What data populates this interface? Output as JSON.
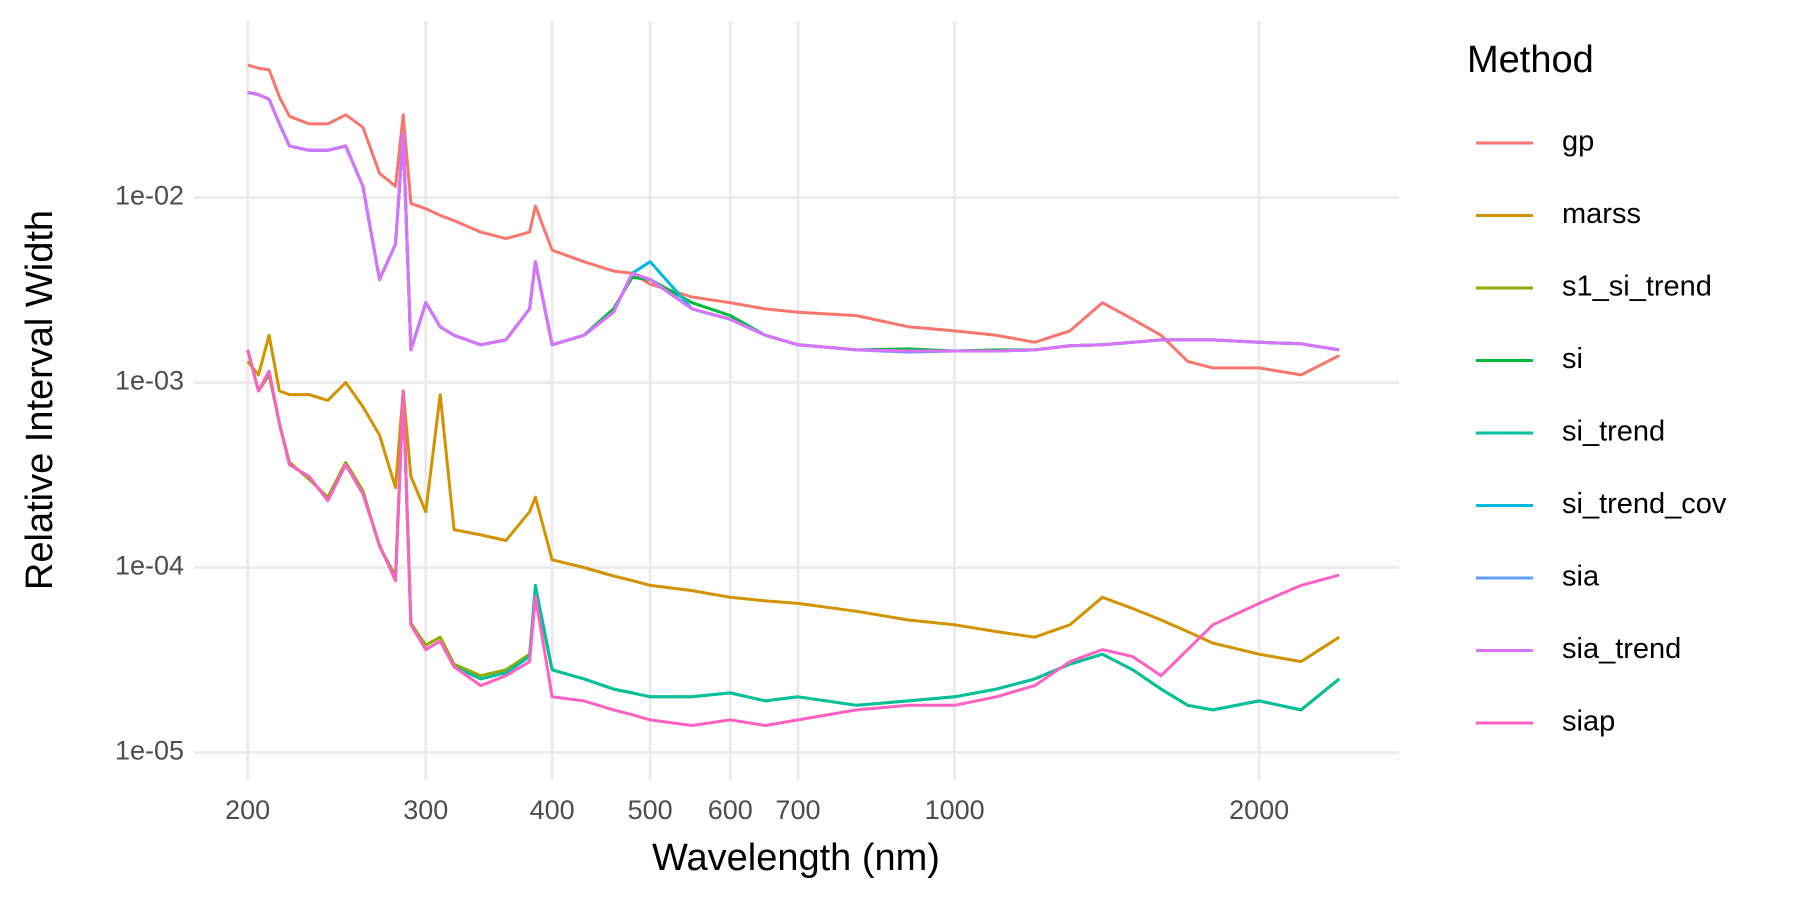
{
  "chart_data": {
    "type": "line",
    "xlabel": "Wavelength (nm)",
    "ylabel": "Relative Interval Width",
    "legend_title": "Method",
    "legend": "right",
    "grid": true,
    "xscale": "log",
    "yscale": "log",
    "xlim": [
      177,
      2750
    ],
    "ylim": [
      7.1e-06,
      0.09
    ],
    "xticks": [
      200,
      300,
      400,
      500,
      600,
      700,
      1000,
      2000
    ],
    "yticks": [
      {
        "value": 1e-05,
        "label": "1e-05"
      },
      {
        "value": 0.0001,
        "label": "1e-04"
      },
      {
        "value": 0.001,
        "label": "1e-03"
      },
      {
        "value": 0.01,
        "label": "1e-02"
      }
    ],
    "x": [
      200,
      205,
      210,
      215,
      220,
      230,
      240,
      250,
      260,
      270,
      280,
      285,
      290,
      300,
      310,
      320,
      340,
      360,
      380,
      385,
      400,
      430,
      460,
      480,
      500,
      550,
      600,
      650,
      700,
      800,
      900,
      1000,
      1100,
      1200,
      1300,
      1400,
      1500,
      1600,
      1700,
      1800,
      2000,
      2200,
      2400
    ],
    "series": [
      {
        "name": "gp",
        "color": "#F8766D",
        "values": [
          0.052,
          0.05,
          0.049,
          0.035,
          0.0275,
          0.025,
          0.025,
          0.028,
          0.024,
          0.0135,
          0.0115,
          0.028,
          0.0093,
          0.0087,
          0.008,
          0.0075,
          0.0065,
          0.006,
          0.0065,
          0.009,
          0.0052,
          0.0045,
          0.004,
          0.0039,
          0.0034,
          0.0029,
          0.0027,
          0.0025,
          0.0024,
          0.0023,
          0.002,
          0.0019,
          0.0018,
          0.00165,
          0.0019,
          0.0027,
          0.0022,
          0.0018,
          0.0013,
          0.0012,
          0.0012,
          0.0011,
          0.0014
        ]
      },
      {
        "name": "marss",
        "color": "#D39200",
        "values": [
          0.0013,
          0.0011,
          0.0018,
          0.0009,
          0.00086,
          0.00086,
          0.0008,
          0.001,
          0.00074,
          0.00052,
          0.00027,
          0.0009,
          0.00031,
          0.0002,
          0.00086,
          0.00016,
          0.00015,
          0.00014,
          0.0002,
          0.00024,
          0.00011,
          0.0001,
          9e-05,
          8.5e-05,
          8e-05,
          7.5e-05,
          6.9e-05,
          6.6e-05,
          6.4e-05,
          5.8e-05,
          5.2e-05,
          4.9e-05,
          4.5e-05,
          4.2e-05,
          4.9e-05,
          6.9e-05,
          6e-05,
          5.2e-05,
          4.5e-05,
          3.9e-05,
          3.4e-05,
          3.1e-05,
          4.2e-05
        ]
      },
      {
        "name": "s1_si_trend",
        "color": "#93AA00",
        "values": [
          0.0015,
          0.0009,
          0.0011,
          0.0006,
          0.00037,
          0.0003,
          0.00024,
          0.00037,
          0.00026,
          0.00013,
          9e-05,
          0.0009,
          5e-05,
          3.8e-05,
          4.2e-05,
          3e-05,
          2.6e-05,
          2.8e-05,
          3.4e-05,
          7.5e-05,
          2.8e-05,
          2.5e-05,
          2.2e-05,
          2.1e-05,
          2e-05,
          2e-05,
          2.1e-05,
          1.9e-05,
          2e-05,
          1.8e-05,
          1.9e-05,
          2e-05,
          2.2e-05,
          2.5e-05,
          3e-05,
          3.4e-05,
          2.8e-05,
          2.2e-05,
          1.8e-05,
          1.7e-05,
          1.9e-05,
          1.7e-05,
          2.5e-05
        ]
      },
      {
        "name": "si",
        "color": "#00BA38",
        "values": [
          0.037,
          0.036,
          0.034,
          0.025,
          0.019,
          0.018,
          0.018,
          0.019,
          0.0115,
          0.0036,
          0.0056,
          0.022,
          0.0015,
          0.0027,
          0.002,
          0.0018,
          0.0016,
          0.0017,
          0.0025,
          0.0045,
          0.0016,
          0.0018,
          0.0025,
          0.0037,
          0.0036,
          0.0027,
          0.0023,
          0.0018,
          0.0016,
          0.0015,
          0.00152,
          0.00148,
          0.0015,
          0.0015,
          0.00158,
          0.0016,
          0.00165,
          0.0017,
          0.0017,
          0.0017,
          0.00165,
          0.00162,
          0.0015
        ]
      },
      {
        "name": "si_trend",
        "color": "#00C19F",
        "values": [
          0.0015,
          0.0009,
          0.00115,
          0.0006,
          0.00036,
          0.00031,
          0.00023,
          0.00036,
          0.00025,
          0.000132,
          8.5e-05,
          0.0009,
          4.9e-05,
          3.6e-05,
          4e-05,
          2.9e-05,
          2.5e-05,
          2.7e-05,
          3.3e-05,
          8e-05,
          2.8e-05,
          2.5e-05,
          2.2e-05,
          2.1e-05,
          2e-05,
          2e-05,
          2.1e-05,
          1.9e-05,
          2e-05,
          1.8e-05,
          1.9e-05,
          2e-05,
          2.2e-05,
          2.5e-05,
          3e-05,
          3.4e-05,
          2.8e-05,
          2.2e-05,
          1.8e-05,
          1.7e-05,
          1.9e-05,
          1.7e-05,
          2.5e-05
        ]
      },
      {
        "name": "si_trend_cov",
        "color": "#00B9E3",
        "values": [
          0.037,
          0.036,
          0.034,
          0.025,
          0.019,
          0.018,
          0.018,
          0.019,
          0.0115,
          0.0036,
          0.0056,
          0.022,
          0.0015,
          0.0027,
          0.002,
          0.0018,
          0.0016,
          0.0017,
          0.0025,
          0.0045,
          0.0016,
          0.0018,
          0.0024,
          0.0039,
          0.0045,
          0.0025,
          0.0022,
          0.0018,
          0.0016,
          0.0015,
          0.00148,
          0.00148,
          0.00148,
          0.0015,
          0.00158,
          0.0016,
          0.00165,
          0.0017,
          0.0017,
          0.0017,
          0.00165,
          0.00162,
          0.0015
        ]
      },
      {
        "name": "sia",
        "color": "#619CFF",
        "values": [
          0.037,
          0.036,
          0.034,
          0.025,
          0.019,
          0.018,
          0.018,
          0.019,
          0.0115,
          0.0036,
          0.0056,
          0.022,
          0.0015,
          0.0027,
          0.002,
          0.0018,
          0.0016,
          0.0017,
          0.0025,
          0.0045,
          0.0016,
          0.0018,
          0.0024,
          0.0039,
          0.0036,
          0.0025,
          0.0022,
          0.0018,
          0.0016,
          0.0015,
          0.00146,
          0.00148,
          0.00148,
          0.0015,
          0.00158,
          0.0016,
          0.00165,
          0.0017,
          0.0017,
          0.0017,
          0.00165,
          0.00162,
          0.0015
        ]
      },
      {
        "name": "sia_trend",
        "color": "#DB72FB",
        "values": [
          0.037,
          0.036,
          0.034,
          0.025,
          0.019,
          0.018,
          0.018,
          0.019,
          0.0115,
          0.0036,
          0.0056,
          0.022,
          0.0015,
          0.0027,
          0.002,
          0.0018,
          0.0016,
          0.0017,
          0.0025,
          0.0045,
          0.0016,
          0.0018,
          0.0024,
          0.0039,
          0.0036,
          0.0025,
          0.0022,
          0.0018,
          0.0016,
          0.0015,
          0.00148,
          0.00148,
          0.00148,
          0.0015,
          0.00158,
          0.0016,
          0.00165,
          0.0017,
          0.0017,
          0.0017,
          0.00165,
          0.00162,
          0.0015
        ]
      },
      {
        "name": "siap",
        "color": "#FF61C3",
        "values": [
          0.0015,
          0.0009,
          0.00115,
          0.0006,
          0.00036,
          0.00031,
          0.00023,
          0.00036,
          0.00025,
          0.000132,
          8.5e-05,
          0.0009,
          4.9e-05,
          3.6e-05,
          4e-05,
          2.9e-05,
          2.3e-05,
          2.6e-05,
          3.1e-05,
          7e-05,
          2e-05,
          1.9e-05,
          1.7e-05,
          1.6e-05,
          1.5e-05,
          1.4e-05,
          1.5e-05,
          1.4e-05,
          1.5e-05,
          1.7e-05,
          1.8e-05,
          1.8e-05,
          2e-05,
          2.3e-05,
          3.1e-05,
          3.6e-05,
          3.3e-05,
          2.6e-05,
          3.6e-05,
          4.9e-05,
          6.4e-05,
          8e-05,
          9.1e-05
        ]
      }
    ]
  }
}
